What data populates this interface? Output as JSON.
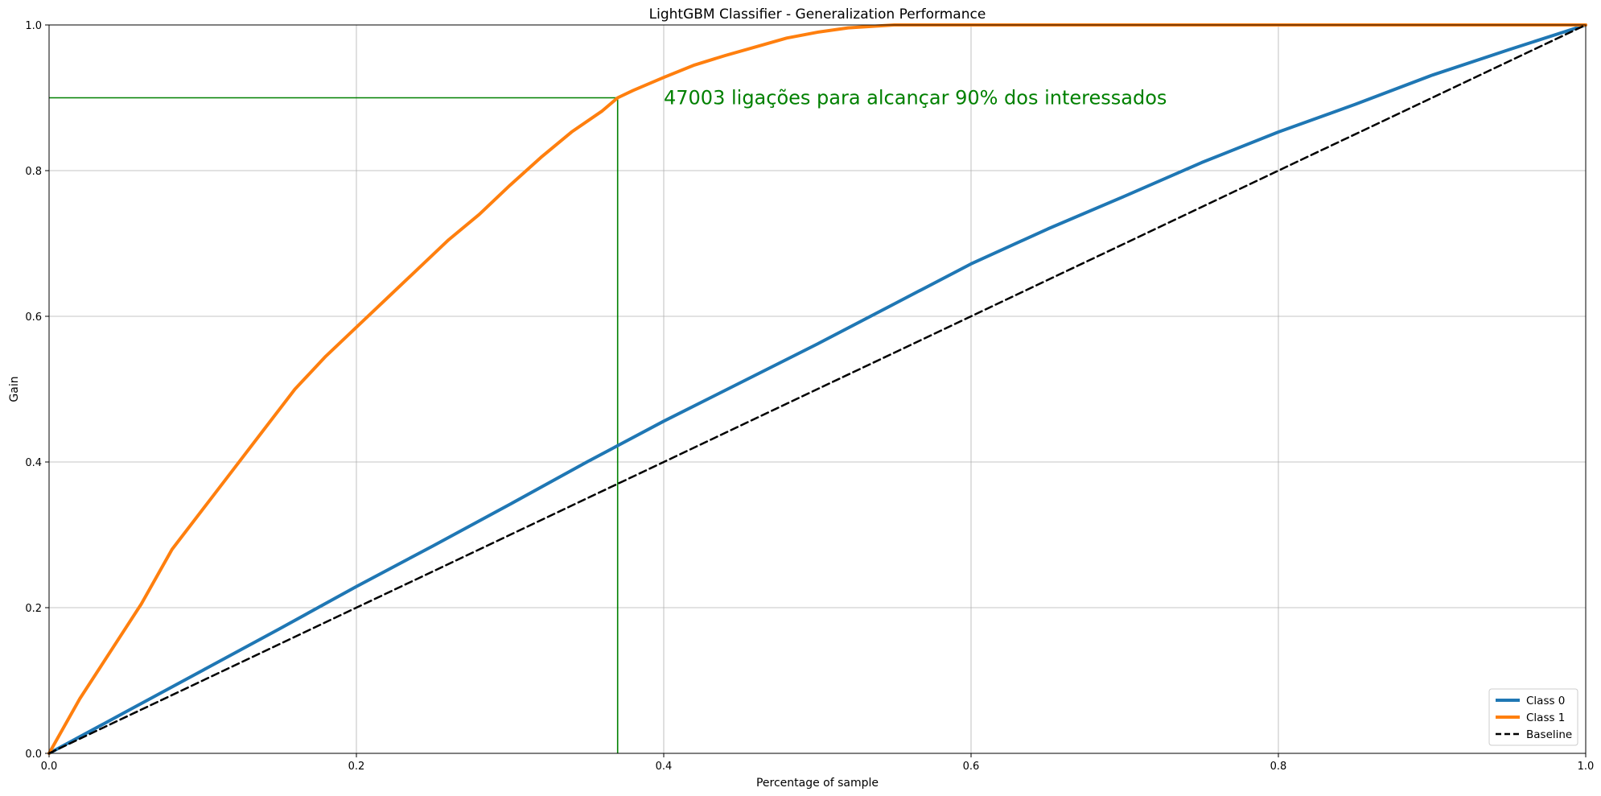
{
  "chart_data": {
    "type": "line",
    "title": "LightGBM Classifier - Generalization Performance",
    "xlabel": "Percentage of sample",
    "ylabel": "Gain",
    "xlim": [
      0,
      1
    ],
    "ylim": [
      0,
      1
    ],
    "grid": true,
    "xticks": [
      "0.0",
      "0.2",
      "0.4",
      "0.6",
      "0.8",
      "1.0"
    ],
    "yticks": [
      "0.0",
      "0.2",
      "0.4",
      "0.6",
      "0.8",
      "1.0"
    ],
    "legend_position": "lower-right",
    "series": [
      {
        "name": "Class 0",
        "color": "#1f77b4",
        "style": "solid",
        "x": [
          0,
          0.05,
          0.1,
          0.15,
          0.2,
          0.25,
          0.3,
          0.35,
          0.4,
          0.45,
          0.5,
          0.55,
          0.6,
          0.65,
          0.7,
          0.75,
          0.8,
          0.85,
          0.9,
          0.95,
          1.0
        ],
        "y": [
          0,
          0.057,
          0.114,
          0.171,
          0.229,
          0.285,
          0.342,
          0.4,
          0.456,
          0.509,
          0.562,
          0.617,
          0.672,
          0.72,
          0.765,
          0.811,
          0.853,
          0.891,
          0.931,
          0.966,
          1.0
        ]
      },
      {
        "name": "Class 1",
        "color": "#ff7f0e",
        "style": "solid",
        "x": [
          0,
          0.02,
          0.04,
          0.06,
          0.08,
          0.1,
          0.12,
          0.14,
          0.16,
          0.18,
          0.2,
          0.22,
          0.24,
          0.26,
          0.28,
          0.3,
          0.32,
          0.34,
          0.36,
          0.37,
          0.38,
          0.4,
          0.42,
          0.44,
          0.46,
          0.48,
          0.5,
          0.52,
          0.55,
          0.6,
          0.7,
          0.8,
          0.9,
          1.0
        ],
        "y": [
          0,
          0.075,
          0.14,
          0.205,
          0.28,
          0.335,
          0.39,
          0.445,
          0.5,
          0.545,
          0.585,
          0.625,
          0.665,
          0.705,
          0.74,
          0.78,
          0.818,
          0.853,
          0.882,
          0.9,
          0.91,
          0.928,
          0.945,
          0.958,
          0.97,
          0.982,
          0.99,
          0.996,
          1.0,
          1.0,
          1.0,
          1.0,
          1.0,
          1.0
        ]
      },
      {
        "name": "Baseline",
        "color": "#000000",
        "style": "dashed",
        "x": [
          0,
          1
        ],
        "y": [
          0,
          1
        ]
      }
    ],
    "reference_lines": {
      "color": "#008000",
      "x": 0.37,
      "y": 0.9
    },
    "annotation": {
      "text": "47003 ligações para alcançar 90% dos interessados",
      "x": 0.4,
      "y": 0.9,
      "color": "#008000"
    }
  }
}
